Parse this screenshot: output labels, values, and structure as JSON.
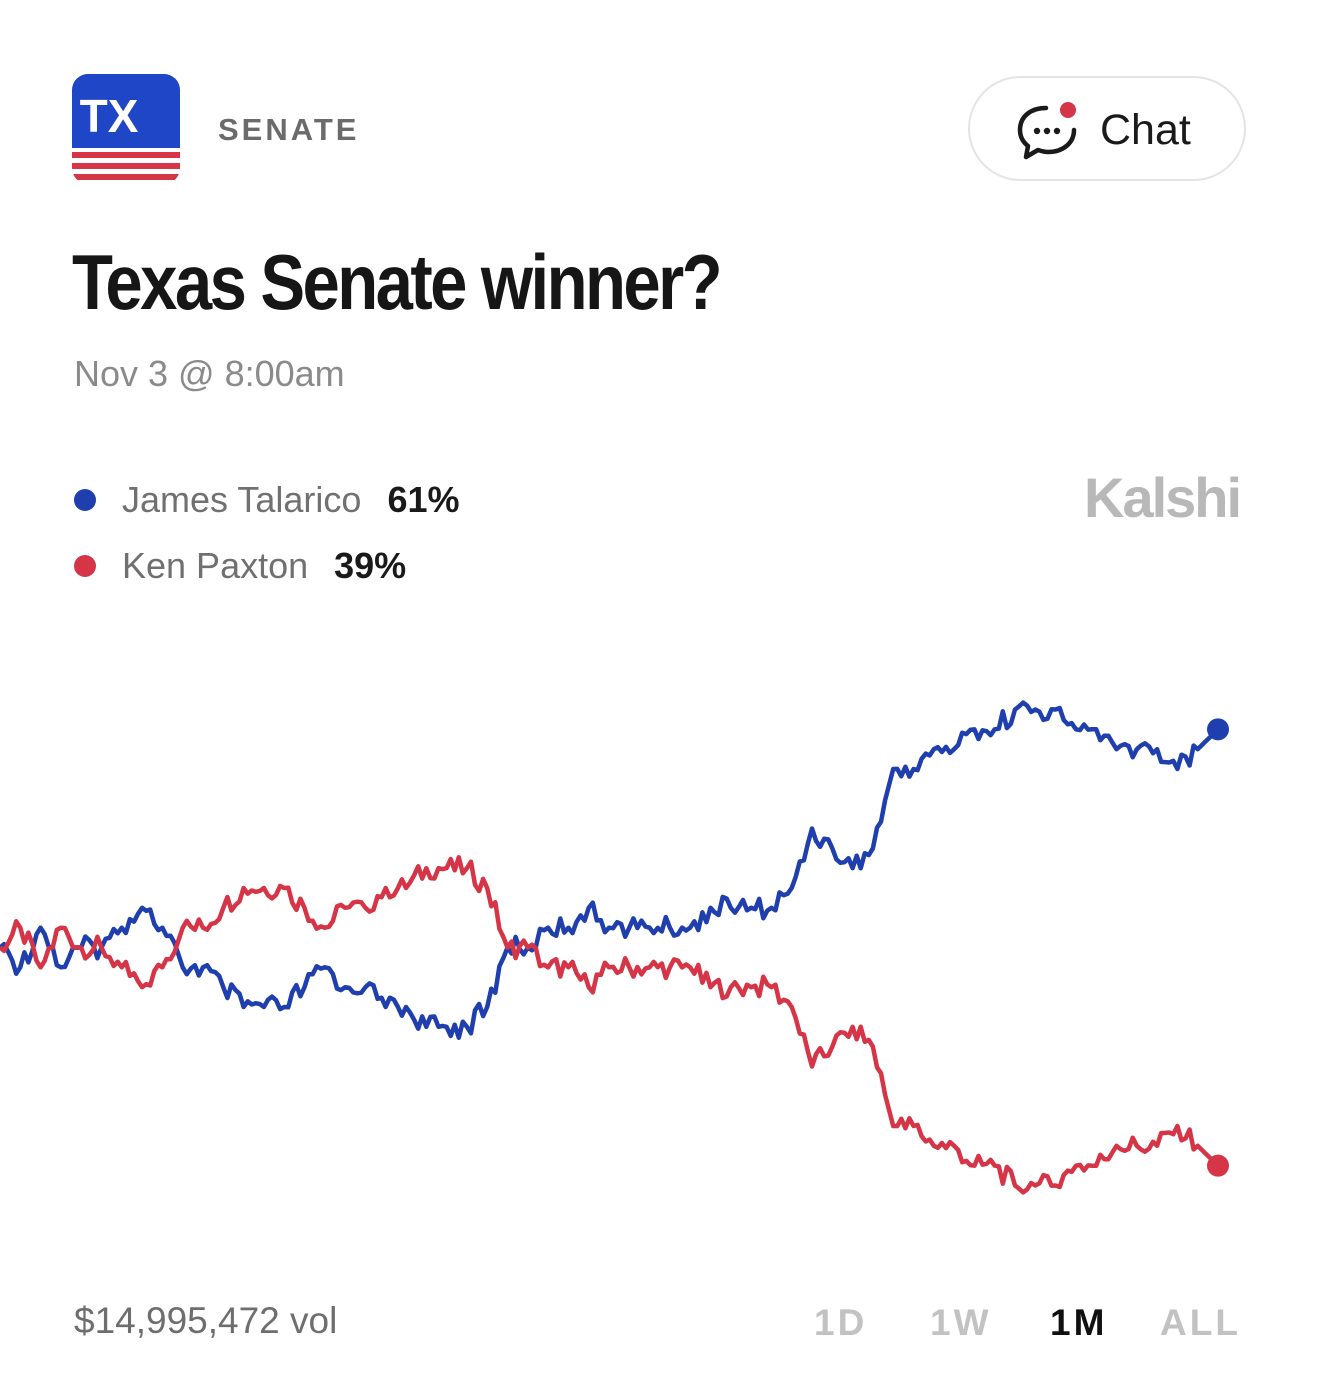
{
  "header": {
    "badge_text": "TX",
    "category": "SENATE",
    "chat_label": "Chat"
  },
  "market": {
    "title": "Texas Senate winner?",
    "date": "Nov 3 @ 8:00am",
    "brand": "Kalshi",
    "volume": "$14,995,472 vol"
  },
  "colors": {
    "talarico": "#1f3fae",
    "paxton": "#d63447",
    "badge_blue": "#1f46c6",
    "badge_red": "#d63447"
  },
  "legend": [
    {
      "name": "James Talarico",
      "value": "61%"
    },
    {
      "name": "Ken Paxton",
      "value": "39%"
    }
  ],
  "time_ranges": [
    {
      "label": "1D",
      "active": false
    },
    {
      "label": "1W",
      "active": false
    },
    {
      "label": "1M",
      "active": true
    },
    {
      "label": "ALL",
      "active": false
    }
  ],
  "chart_data": {
    "type": "line",
    "title": "",
    "xlabel": "",
    "ylabel": "",
    "ylim": [
      35,
      65
    ],
    "grid": false,
    "legend_placement": "top-left",
    "x": [
      0,
      1,
      2,
      3,
      4,
      5,
      6,
      7,
      8,
      9,
      10,
      11,
      12,
      13,
      14,
      15,
      16,
      17,
      18,
      19,
      20,
      21,
      22,
      23,
      24,
      25,
      26,
      27,
      28,
      29,
      30,
      31,
      32,
      33,
      34,
      35,
      36,
      37,
      38,
      39,
      40,
      41,
      42,
      43,
      44,
      45,
      46,
      47,
      48,
      49,
      50,
      51,
      52,
      53,
      54,
      55,
      56,
      57,
      58,
      59,
      60
    ],
    "series": [
      {
        "name": "James Talarico",
        "values": [
          50,
          49,
          51,
          49,
          50,
          50,
          51,
          52,
          51,
          49,
          49,
          48,
          47,
          47,
          47,
          48,
          49,
          48,
          48,
          47,
          47,
          46,
          46,
          46,
          47,
          50,
          50,
          51,
          51,
          52,
          51,
          51,
          51,
          51,
          51,
          52,
          52,
          52,
          52,
          53,
          56,
          55,
          54,
          55,
          59,
          59,
          60,
          60,
          61,
          61,
          62,
          62,
          62,
          61,
          61,
          60,
          60,
          60,
          59,
          60,
          61
        ],
        "end_label": "61%"
      },
      {
        "name": "Ken Paxton",
        "values": [
          50,
          51,
          49,
          51,
          50,
          50,
          49,
          48,
          49,
          51,
          51,
          52,
          53,
          53,
          53,
          52,
          51,
          52,
          52,
          53,
          53,
          54,
          54,
          54,
          53,
          50,
          50,
          49,
          49,
          48,
          49,
          49,
          49,
          49,
          49,
          48,
          48,
          48,
          48,
          47,
          44,
          45,
          46,
          45,
          41,
          41,
          40,
          40,
          39,
          39,
          38,
          38,
          38,
          39,
          39,
          40,
          40,
          40,
          41,
          40,
          39
        ],
        "end_label": "39%"
      }
    ]
  }
}
